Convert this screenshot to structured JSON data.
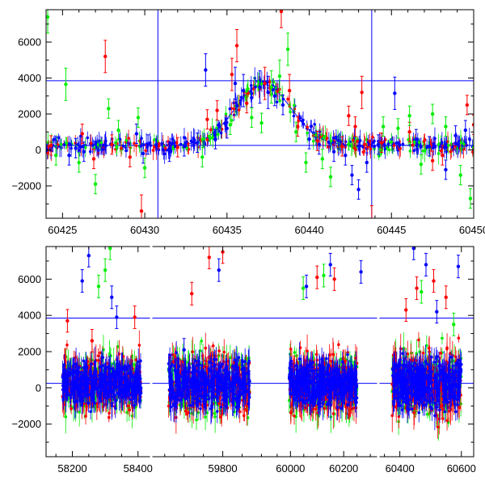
{
  "chart_data": [
    {
      "type": "scatter",
      "title": "",
      "xlabel": "",
      "ylabel": "",
      "xlim": [
        60424,
        60450
      ],
      "ylim": [
        -3800,
        7800
      ],
      "x_ticks": [
        60425,
        60430,
        60435,
        60440,
        60445,
        60450
      ],
      "y_ticks": [
        -2000,
        0,
        2000,
        4000,
        6000
      ],
      "grid": false,
      "colors": {
        "red": "#ff0000",
        "green": "#00ee00",
        "blue": "#0000ff",
        "lines": "#0000ff"
      },
      "horizontal_lines": [
        250,
        3850
      ],
      "vertical_lines": [
        60430.8,
        60443.8
      ],
      "model_curve": {
        "baseline": 250,
        "peak": 3400,
        "center": 60437.2,
        "width": 1.7
      },
      "series": [
        {
          "color": "blue",
          "points": [
            [
              60424.6,
              200
            ],
            [
              60425.4,
              -300
            ],
            [
              60425.8,
              100
            ],
            [
              60426.3,
              -100
            ],
            [
              60429.5,
              900
            ],
            [
              60429.9,
              -200
            ],
            [
              60430.2,
              300
            ],
            [
              60431.5,
              -100
            ],
            [
              60432.4,
              200
            ],
            [
              60433.2,
              400
            ],
            [
              60433.7,
              4450
            ],
            [
              60434.3,
              600
            ],
            [
              60435.0,
              1200
            ],
            [
              60435.5,
              3700
            ],
            [
              60436.0,
              3300
            ],
            [
              60436.5,
              2900
            ],
            [
              60437.0,
              3500
            ],
            [
              60437.5,
              3200
            ],
            [
              60437.9,
              3000
            ],
            [
              60438.4,
              2500
            ],
            [
              60440.0,
              600
            ],
            [
              60440.6,
              300
            ],
            [
              60441.5,
              -100
            ],
            [
              60442.2,
              -300
            ],
            [
              60442.6,
              -1400
            ],
            [
              60443.0,
              -2200
            ],
            [
              60443.5,
              -700
            ],
            [
              60444.2,
              300
            ],
            [
              60445.2,
              3150
            ],
            [
              60446.5,
              600
            ],
            [
              60447.3,
              200
            ],
            [
              60448.3,
              -1100
            ],
            [
              60448.9,
              800
            ],
            [
              60449.5,
              1100
            ]
          ]
        },
        {
          "color": "red",
          "points": [
            [
              60424.3,
              250
            ],
            [
              60426.2,
              900
            ],
            [
              60426.9,
              -500
            ],
            [
              60427.6,
              5200
            ],
            [
              60428.0,
              300
            ],
            [
              60429.1,
              -400
            ],
            [
              60429.8,
              -3400
            ],
            [
              60432.0,
              150
            ],
            [
              60433.8,
              1700
            ],
            [
              60434.4,
              2200
            ],
            [
              60435.3,
              4200
            ],
            [
              60435.6,
              5800
            ],
            [
              60436.2,
              2600
            ],
            [
              60437.3,
              3700
            ],
            [
              60438.3,
              7700
            ],
            [
              60438.8,
              3300
            ],
            [
              60439.3,
              1300
            ],
            [
              60440.5,
              500
            ],
            [
              60442.0,
              200
            ],
            [
              60442.4,
              1900
            ],
            [
              60442.8,
              1300
            ],
            [
              60443.2,
              3200
            ],
            [
              60443.8,
              -4000
            ],
            [
              60444.4,
              400
            ],
            [
              60446.1,
              1000
            ],
            [
              60447.5,
              -600
            ],
            [
              60448.1,
              -300
            ],
            [
              60449.6,
              2500
            ],
            [
              60450.0,
              1400
            ]
          ]
        },
        {
          "color": "green",
          "points": [
            [
              60424.1,
              7400
            ],
            [
              60424.6,
              -300
            ],
            [
              60425.2,
              3650
            ],
            [
              60426.0,
              -700
            ],
            [
              60427.0,
              -1900
            ],
            [
              60427.8,
              2300
            ],
            [
              60428.4,
              1100
            ],
            [
              60429.6,
              1800
            ],
            [
              60430.0,
              -1000
            ],
            [
              60433.5,
              -400
            ],
            [
              60435.2,
              1400
            ],
            [
              60436.5,
              1800
            ],
            [
              60437.1,
              1500
            ],
            [
              60437.7,
              3500
            ],
            [
              60438.2,
              4100
            ],
            [
              60438.7,
              5600
            ],
            [
              60439.2,
              1000
            ],
            [
              60439.8,
              -700
            ],
            [
              60440.8,
              -500
            ],
            [
              60441.3,
              -1500
            ],
            [
              60444.5,
              1300
            ],
            [
              60445.4,
              1200
            ],
            [
              60446.1,
              1900
            ],
            [
              60446.8,
              -800
            ],
            [
              60447.5,
              2000
            ],
            [
              60448.3,
              1300
            ],
            [
              60449.2,
              -1400
            ],
            [
              60449.8,
              -2700
            ]
          ]
        }
      ]
    },
    {
      "type": "scatter",
      "title": "",
      "xlabel": "",
      "ylabel": "",
      "ylim": [
        -3800,
        7800
      ],
      "y_ticks": [
        -2000,
        0,
        2000,
        4000,
        6000
      ],
      "grid": false,
      "colors": {
        "red": "#ff0000",
        "green": "#00ee00",
        "blue": "#0000ff",
        "lines": "#0000ff"
      },
      "horizontal_lines": [
        250,
        3850
      ],
      "panels": [
        {
          "xlim": [
            58120,
            58440
          ],
          "x_ticks": [
            58200,
            58400
          ]
        },
        {
          "xlim": [
            59615,
            59920
          ],
          "x_ticks": [
            59800
          ]
        },
        {
          "xlim": [
            59920,
            60330
          ],
          "x_ticks": [
            60000,
            60200
          ]
        },
        {
          "xlim": [
            60330,
            60640
          ],
          "x_ticks": [
            60400,
            60600
          ]
        }
      ],
      "clusters": [
        {
          "x_range": [
            58170,
            58410
          ],
          "spread": 1500
        },
        {
          "x_range": [
            59660,
            59870
          ],
          "spread": 1700
        },
        {
          "x_range": [
            59995,
            60250
          ],
          "spread": 1600
        },
        {
          "x_range": [
            60375,
            60600
          ],
          "spread": 1800
        }
      ],
      "outliers": [
        {
          "color": "blue",
          "points": [
            [
              58230,
              5900
            ],
            [
              58250,
              7300
            ],
            [
              58320,
              5000
            ],
            [
              58335,
              3900
            ],
            [
              59700,
              2100
            ],
            [
              59790,
              6500
            ],
            [
              60060,
              5600
            ],
            [
              60150,
              6800
            ],
            [
              60265,
              6400
            ],
            [
              60445,
              7700
            ],
            [
              60485,
              6800
            ],
            [
              60520,
              4200
            ],
            [
              60590,
              6700
            ]
          ]
        },
        {
          "color": "red",
          "points": [
            [
              58185,
              3700
            ],
            [
              58260,
              2600
            ],
            [
              58390,
              3900
            ],
            [
              59720,
              5200
            ],
            [
              59765,
              7200
            ],
            [
              59800,
              7500
            ],
            [
              60100,
              6100
            ],
            [
              60165,
              6000
            ],
            [
              60420,
              4300
            ],
            [
              60455,
              5500
            ],
            [
              60510,
              5900
            ],
            [
              60550,
              5000
            ]
          ]
        },
        {
          "color": "green",
          "points": [
            [
              58280,
              5600
            ],
            [
              58300,
              6500
            ],
            [
              58315,
              7700
            ],
            [
              60048,
              5500
            ],
            [
              60125,
              6200
            ],
            [
              60470,
              5300
            ],
            [
              60575,
              3500
            ]
          ]
        }
      ]
    }
  ]
}
